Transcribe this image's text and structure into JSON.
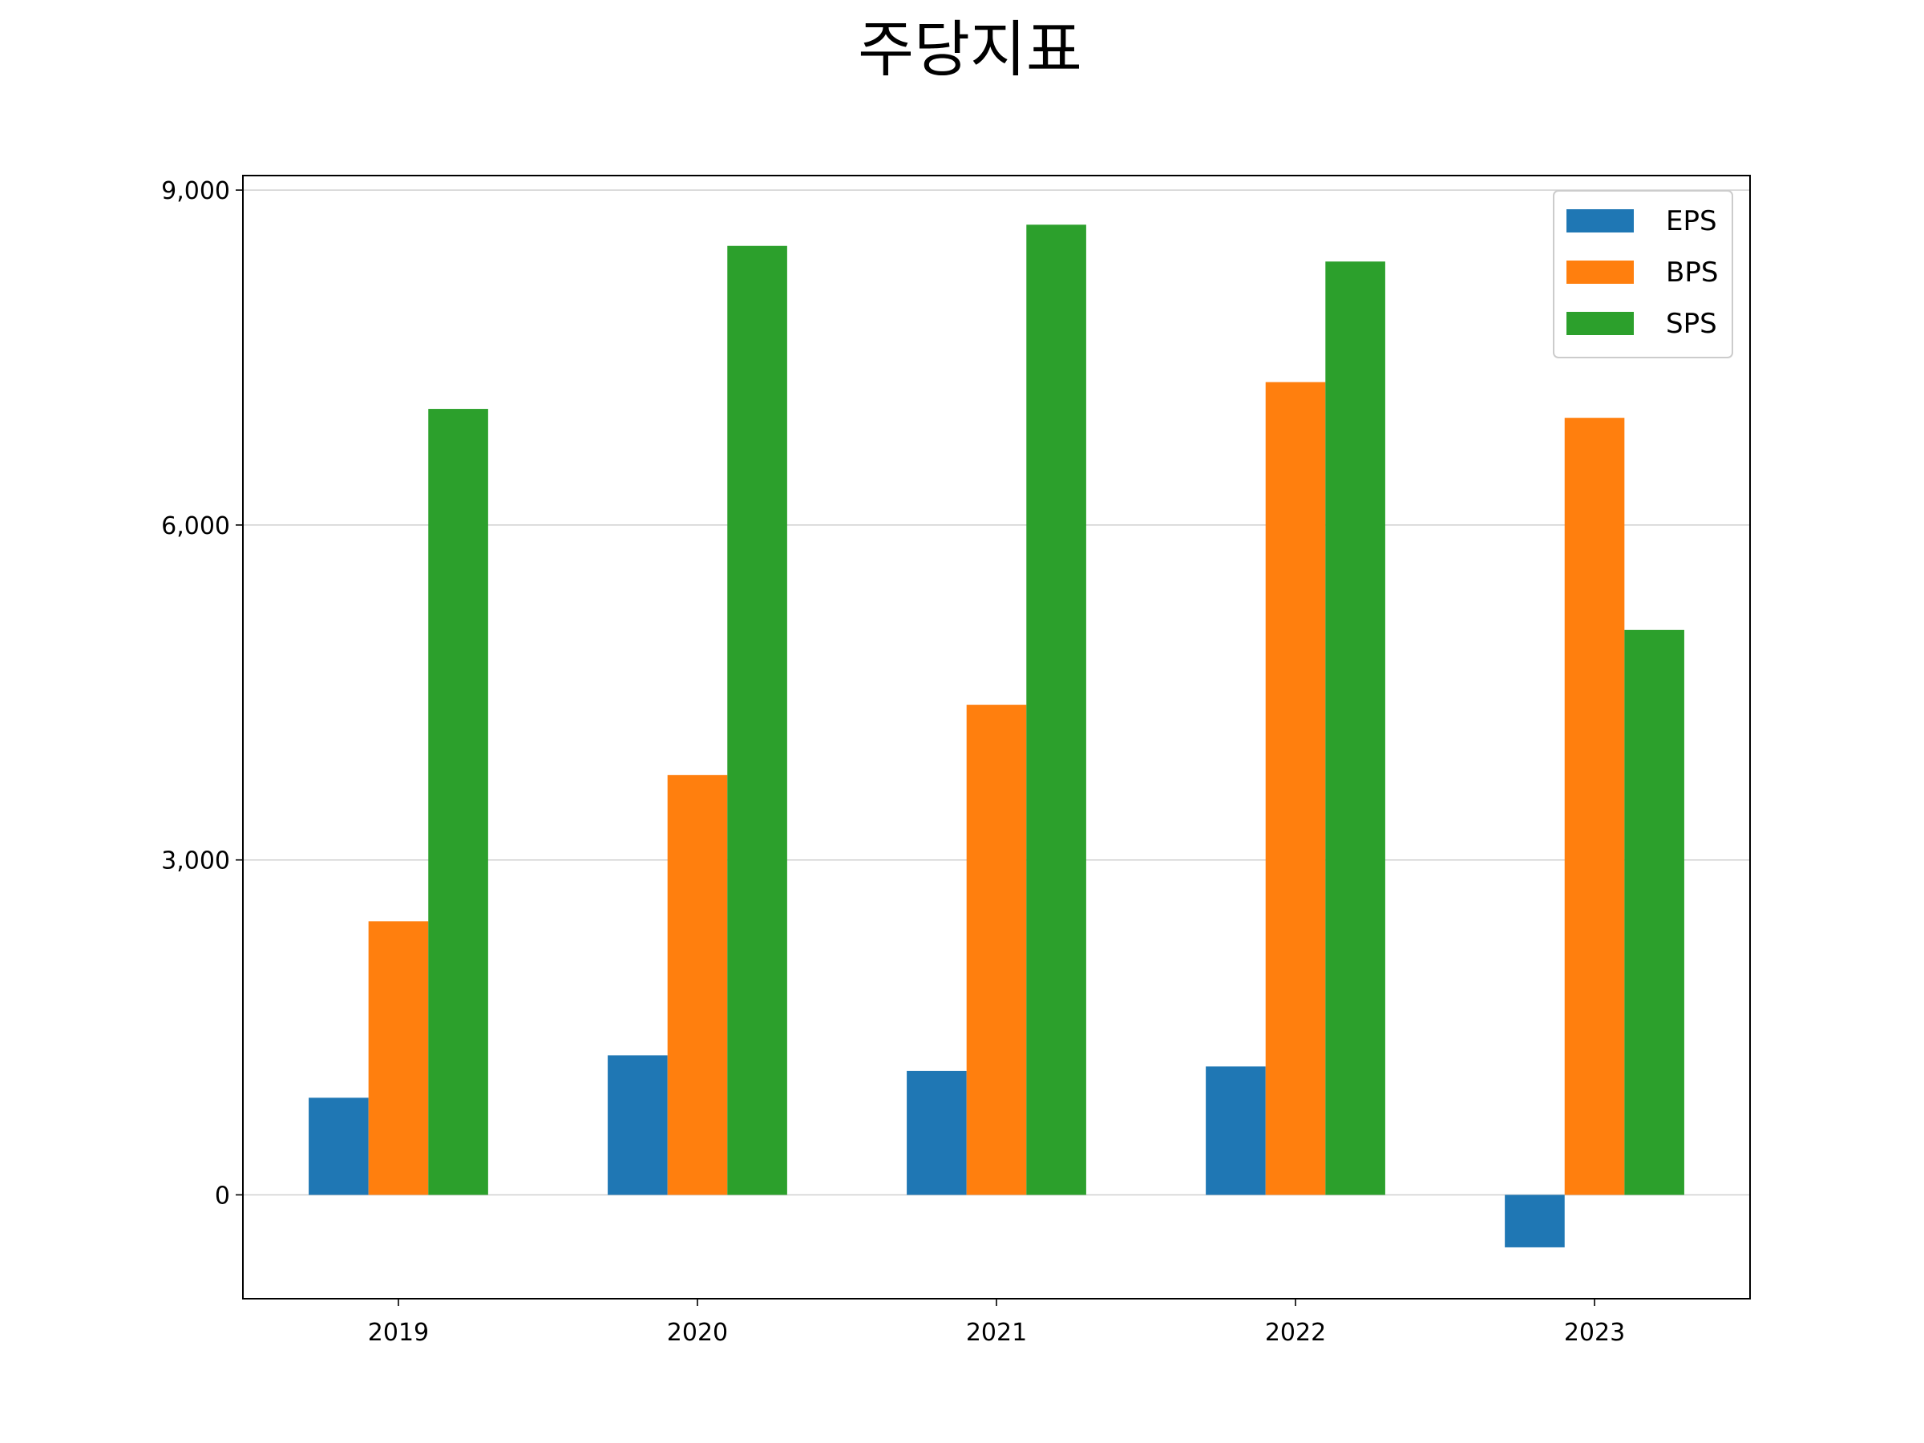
{
  "chart_data": {
    "type": "bar",
    "title": "주당지표",
    "xlabel": "",
    "ylabel": "",
    "categories": [
      "2019",
      "2020",
      "2021",
      "2022",
      "2023"
    ],
    "series": [
      {
        "name": "EPS",
        "color": "#1f77b4",
        "values": [
          870,
          1250,
          1110,
          1150,
          -470
        ]
      },
      {
        "name": "BPS",
        "color": "#ff7f0e",
        "values": [
          2450,
          3760,
          4390,
          7280,
          6960
        ]
      },
      {
        "name": "SPS",
        "color": "#2ca02c",
        "values": [
          7040,
          8500,
          8690,
          8360,
          5060
        ]
      }
    ],
    "ylim": [
      -930,
      9130
    ],
    "yticks": [
      0,
      3000,
      6000,
      9000
    ],
    "ytick_labels": [
      "0",
      "3,000",
      "6,000",
      "9,000"
    ],
    "grid": "horizontal",
    "legend_position": "top-right"
  }
}
